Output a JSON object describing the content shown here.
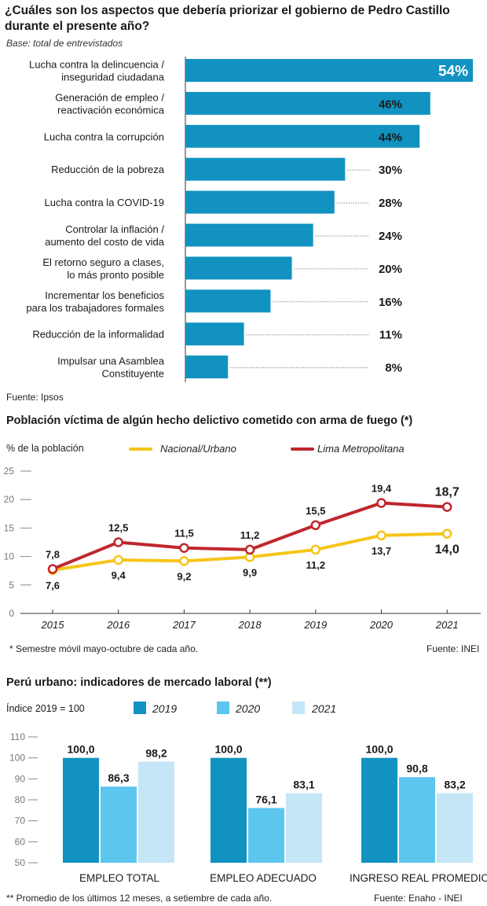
{
  "chart_data": [
    {
      "type": "bar",
      "orientation": "horizontal",
      "title": "¿Cuáles son los aspectos que debería priorizar el gobierno de Pedro Castillo durante el presente año?",
      "subtitle": "Base: total de entrevistados",
      "source": "Fuente: Ipsos",
      "categories": [
        [
          "Lucha contra la delincuencia /",
          "inseguridad ciudadana"
        ],
        [
          "Generación de empleo /",
          "reactivación económica"
        ],
        [
          "Lucha contra la corrupción"
        ],
        [
          "Reducción de la pobreza"
        ],
        [
          "Lucha contra la COVID-19"
        ],
        [
          "Controlar la inflación /",
          "aumento del costo de vida"
        ],
        [
          "El retorno seguro a clases,",
          "lo más pronto posible"
        ],
        [
          "Incrementar los beneficios",
          "para los trabajadores formales"
        ],
        [
          "Reducción de la informalidad"
        ],
        [
          "Impulsar una Asamblea",
          "Constituyente"
        ]
      ],
      "values": [
        54,
        46,
        44,
        30,
        28,
        24,
        20,
        16,
        11,
        8
      ],
      "value_labels": [
        "54%",
        "46%",
        "44%",
        "30%",
        "28%",
        "24%",
        "20%",
        "16%",
        "11%",
        "8%"
      ],
      "color": "#1192c1",
      "xlim": [
        0,
        54
      ]
    },
    {
      "type": "line",
      "title": "Población víctima de algún hecho delictivo cometido con arma de fuego (*)",
      "ylabel": "% de la población",
      "x": [
        "2015",
        "2016",
        "2017",
        "2018",
        "2019",
        "2020",
        "2021"
      ],
      "ylim": [
        0,
        25
      ],
      "yticks": [
        "0",
        "5",
        "10",
        "15",
        "20",
        "25"
      ],
      "series": [
        {
          "name": "Nacional/Urbano",
          "color": "#f5c518",
          "values": [
            7.6,
            9.4,
            9.2,
            9.9,
            11.2,
            13.7,
            14.0
          ],
          "labels": [
            "7,6",
            "9,4",
            "9,2",
            "9,9",
            "11,2",
            "13,7",
            "14,0"
          ]
        },
        {
          "name": "Lima Metropolitana",
          "color": "#c0272d",
          "values": [
            7.8,
            12.5,
            11.5,
            11.2,
            15.5,
            19.4,
            18.7
          ],
          "labels": [
            "7,8",
            "12,5",
            "11,5",
            "11,2",
            "15,5",
            "19,4",
            "18,7"
          ]
        }
      ],
      "legend": "top",
      "note": "* Semestre móvil mayo-octubre de cada año.",
      "source": "Fuente: INEI"
    },
    {
      "type": "bar",
      "title": "Perú urbano: indicadores de mercado laboral (**)",
      "ylabel": "Índice 2019 = 100",
      "categories": [
        "EMPLEO TOTAL",
        "EMPLEO ADECUADO",
        "INGRESO REAL PROMEDIO"
      ],
      "ylim": [
        50,
        110
      ],
      "yticks": [
        "50",
        "60",
        "70",
        "80",
        "90",
        "100",
        "110"
      ],
      "series": [
        {
          "name": "2019",
          "color": "#1192c1",
          "values": [
            100.0,
            100.0,
            100.0
          ],
          "labels": [
            "100,0",
            "100,0",
            "100,0"
          ]
        },
        {
          "name": "2020",
          "color": "#5cc6ee",
          "values": [
            86.3,
            76.1,
            90.8
          ],
          "labels": [
            "86,3",
            "76,1",
            "90,8"
          ]
        },
        {
          "name": "2021",
          "color": "#c4e6f7",
          "values": [
            98.2,
            83.1,
            83.2
          ],
          "labels": [
            "98,2",
            "83,1",
            "83,2"
          ]
        }
      ],
      "note": "** Promedio de los últimos 12 meses, a setiembre de cada año.",
      "source": "Fuente: Enaho - INEI"
    }
  ]
}
